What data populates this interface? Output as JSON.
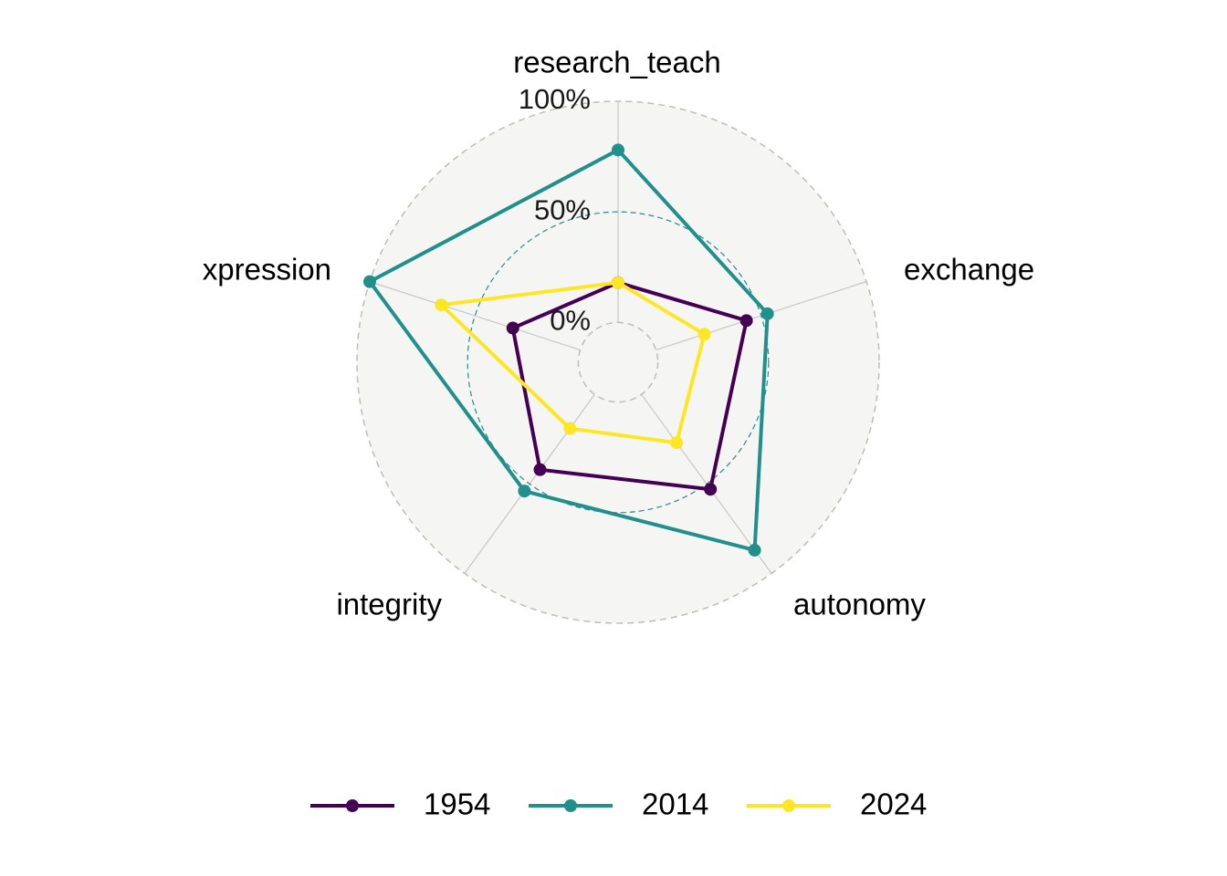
{
  "chart_data": {
    "type": "radar",
    "title": "",
    "axes": [
      "research_teach",
      "exchange",
      "autonomy",
      "integrity",
      "xpression"
    ],
    "grid_levels": [
      0,
      0.5,
      1
    ],
    "grid_labels": [
      "0%",
      "50%",
      "100%"
    ],
    "ylim": [
      -0.18,
      1
    ],
    "legend_position": "bottom",
    "series": [
      {
        "name": "1954",
        "color": "#440154",
        "values": [
          0.18,
          0.43,
          0.53,
          0.42,
          0.32
        ]
      },
      {
        "name": "2014",
        "color": "#21908C",
        "values": [
          0.78,
          0.53,
          0.87,
          0.54,
          1.0
        ]
      },
      {
        "name": "2024",
        "color": "#FDE725",
        "values": [
          0.18,
          0.23,
          0.27,
          0.19,
          0.66
        ]
      }
    ]
  }
}
